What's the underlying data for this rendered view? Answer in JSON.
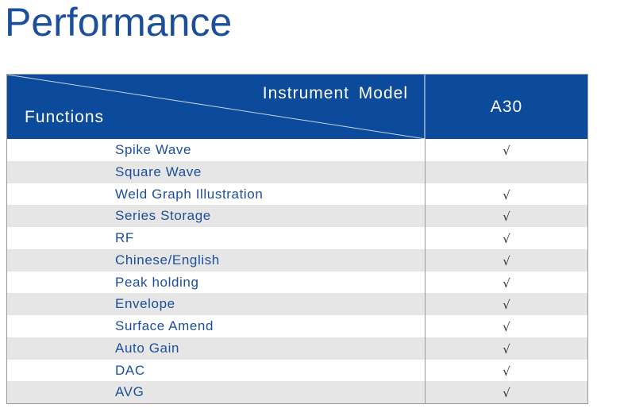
{
  "title": "Performance",
  "table": {
    "header": {
      "instrument_label": "Instrument Model",
      "functions_label": "Functions",
      "model": "A30"
    },
    "rows": [
      {
        "function": "Spike Wave",
        "mark": "√"
      },
      {
        "function": "Square Wave",
        "mark": ""
      },
      {
        "function": "Weld Graph Illustration",
        "mark": "√"
      },
      {
        "function": "Series Storage",
        "mark": "√"
      },
      {
        "function": "RF",
        "mark": "√"
      },
      {
        "function": "Chinese/English",
        "mark": "√"
      },
      {
        "function": "Peak holding",
        "mark": "√"
      },
      {
        "function": "Envelope",
        "mark": "√"
      },
      {
        "function": "Surface Amend",
        "mark": "√"
      },
      {
        "function": "Auto Gain",
        "mark": "√"
      },
      {
        "function": "DAC",
        "mark": "√"
      },
      {
        "function": "AVG",
        "mark": "√"
      }
    ]
  },
  "colors": {
    "title": "#1b4f9c",
    "header_bg": "#0c4b9c",
    "row_alt": "#e6e6e6",
    "function_text": "#1b4f9c"
  }
}
